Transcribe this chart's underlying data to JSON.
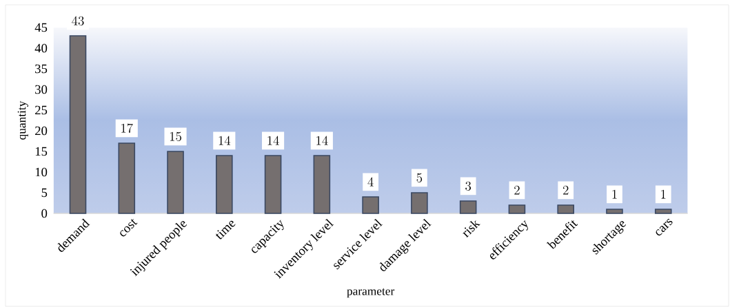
{
  "chart_data": {
    "type": "bar",
    "xlabel": "parameter",
    "ylabel": "quantity",
    "categories": [
      "demand",
      "cost",
      "injured people",
      "time",
      "capacity",
      "inventory level",
      "service level",
      "damage level",
      "risk",
      "efficiency",
      "benefit",
      "shortage",
      "cars"
    ],
    "values": [
      43,
      17,
      15,
      14,
      14,
      14,
      4,
      5,
      3,
      2,
      2,
      1,
      1
    ],
    "color": "#756f6f",
    "ylim": [
      0,
      45
    ],
    "yticks": [
      0,
      5,
      10,
      15,
      20,
      25,
      30,
      35,
      40,
      45
    ],
    "data_labels": true
  }
}
